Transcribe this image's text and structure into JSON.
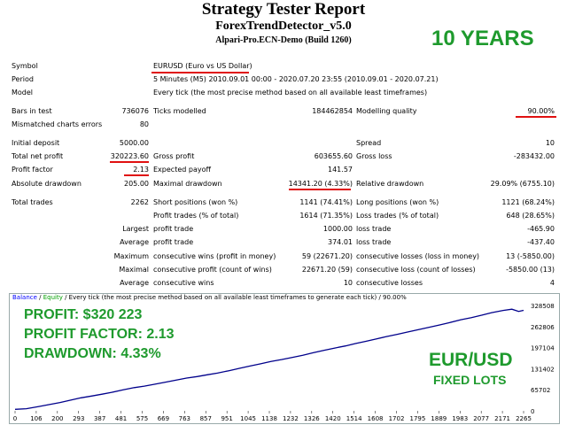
{
  "header": {
    "title": "Strategy Tester Report",
    "ea": "ForexTrendDetector_v5.0",
    "server": "Alpari-Pro.ECN-Demo (Build 1260)",
    "promo": "10 YEARS"
  },
  "params": {
    "symbol_label": "Symbol",
    "symbol": "EURUSD (Euro vs US Dollar)",
    "period_label": "Period",
    "period": "5 Minutes (M5) 2010.09.01 00:00 - 2020.07.20 23:55 (2010.09.01 - 2020.07.21)",
    "model_label": "Model",
    "model": "Every tick (the most precise method based on all available least timeframes)"
  },
  "stats": {
    "bars_label": "Bars in test",
    "bars": "736076",
    "ticks_label": "Ticks modelled",
    "ticks": "184462854",
    "quality_label": "Modelling quality",
    "quality": "90.00%",
    "mismatch_label": "Mismatched charts errors",
    "mismatch": "80",
    "deposit_label": "Initial deposit",
    "deposit": "5000.00",
    "spread_label": "Spread",
    "spread": "10",
    "netprofit_label": "Total net profit",
    "netprofit": "320223.60",
    "grossprofit_label": "Gross profit",
    "grossprofit": "603655.60",
    "grossloss_label": "Gross loss",
    "grossloss": "-283432.00",
    "pf_label": "Profit factor",
    "pf": "2.13",
    "payoff_label": "Expected payoff",
    "payoff": "141.57",
    "absdd_label": "Absolute drawdown",
    "absdd": "205.00",
    "maxdd_label": "Maximal drawdown",
    "maxdd": "14341.20 (4.33%)",
    "reldd_label": "Relative drawdown",
    "reldd": "29.09% (6755.10)"
  },
  "trades": {
    "total_label": "Total trades",
    "total": "2262",
    "short_label": "Short positions (won %)",
    "short": "1141 (74.41%)",
    "long_label": "Long positions (won %)",
    "long": "1121 (68.24%)",
    "profit_label": "Profit trades (% of total)",
    "profit": "1614 (71.35%)",
    "loss_label": "Loss trades (% of total)",
    "loss": "648 (28.65%)",
    "largest": "Largest",
    "average": "Average",
    "maximum": "Maximum",
    "maximal": "Maximal",
    "lg_profit_label": "profit trade",
    "lg_profit": "1000.00",
    "lg_loss_label": "loss trade",
    "lg_loss": "-465.90",
    "av_profit_label": "profit trade",
    "av_profit": "374.01",
    "av_loss_label": "loss trade",
    "av_loss": "-437.40",
    "mx_wins_label": "consecutive wins (profit in money)",
    "mx_wins": "59 (22671.20)",
    "mx_losses_label": "consecutive losses (loss in money)",
    "mx_losses": "13 (-5850.00)",
    "ml_profit_label": "consecutive profit (count of wins)",
    "ml_profit": "22671.20 (59)",
    "ml_loss_label": "consecutive loss (count of losses)",
    "ml_loss": "-5850.00 (13)",
    "avc_wins_label": "consecutive wins",
    "avc_wins": "10",
    "avc_losses_label": "consecutive losses",
    "avc_losses": "4"
  },
  "chart_header": {
    "balance": "Balance",
    "sep1": " / ",
    "equity": "Equity",
    "rest": " / Every tick (the most precise method based on all available least timeframes to generate each tick) / 90.00%"
  },
  "overlay": {
    "profit": "PROFIT: $320 223",
    "pf": "PROFIT FACTOR: 2.13",
    "dd": "DRAWDOWN: 4.33%",
    "pair": "EUR/USD",
    "lots": "FIXED LOTS"
  },
  "colors": {
    "promo_green": "#1e9a2d",
    "balance_line": "#00008b",
    "underline": "#e01010"
  },
  "chart_data": {
    "type": "line",
    "title": "",
    "xlabel": "",
    "ylabel": "",
    "x_ticks": [
      0,
      106,
      200,
      293,
      387,
      481,
      575,
      669,
      763,
      857,
      951,
      1045,
      1138,
      1232,
      1326,
      1420,
      1514,
      1608,
      1702,
      1795,
      1889,
      1983,
      2077,
      2171,
      2265
    ],
    "y_ticks": [
      "328508",
      "262806",
      "197104",
      "131402",
      "65702",
      "0"
    ],
    "xlim": [
      0,
      2262
    ],
    "ylim": [
      0,
      344000
    ],
    "series": [
      {
        "values": [
          [
            0,
            5000
          ],
          [
            50,
            7000
          ],
          [
            106,
            14000
          ],
          [
            150,
            20000
          ],
          [
            200,
            27000
          ],
          [
            250,
            35000
          ],
          [
            293,
            42000
          ],
          [
            340,
            48000
          ],
          [
            387,
            54000
          ],
          [
            430,
            60000
          ],
          [
            481,
            68000
          ],
          [
            530,
            75000
          ],
          [
            575,
            80000
          ],
          [
            620,
            86000
          ],
          [
            669,
            93000
          ],
          [
            720,
            100000
          ],
          [
            763,
            106000
          ],
          [
            810,
            111000
          ],
          [
            857,
            117000
          ],
          [
            900,
            122000
          ],
          [
            951,
            130000
          ],
          [
            1000,
            138000
          ],
          [
            1045,
            145000
          ],
          [
            1090,
            152000
          ],
          [
            1138,
            160000
          ],
          [
            1185,
            166000
          ],
          [
            1232,
            173000
          ],
          [
            1280,
            180000
          ],
          [
            1326,
            188000
          ],
          [
            1375,
            196000
          ],
          [
            1420,
            203000
          ],
          [
            1470,
            210000
          ],
          [
            1514,
            218000
          ],
          [
            1560,
            225000
          ],
          [
            1608,
            233000
          ],
          [
            1650,
            240000
          ],
          [
            1702,
            248000
          ],
          [
            1750,
            256000
          ],
          [
            1795,
            263000
          ],
          [
            1840,
            270000
          ],
          [
            1889,
            278000
          ],
          [
            1935,
            286000
          ],
          [
            1983,
            295000
          ],
          [
            2030,
            302000
          ],
          [
            2077,
            310000
          ],
          [
            2120,
            318000
          ],
          [
            2171,
            325000
          ],
          [
            2210,
            329000
          ],
          [
            2240,
            322000
          ],
          [
            2262,
            325224
          ]
        ]
      }
    ]
  }
}
